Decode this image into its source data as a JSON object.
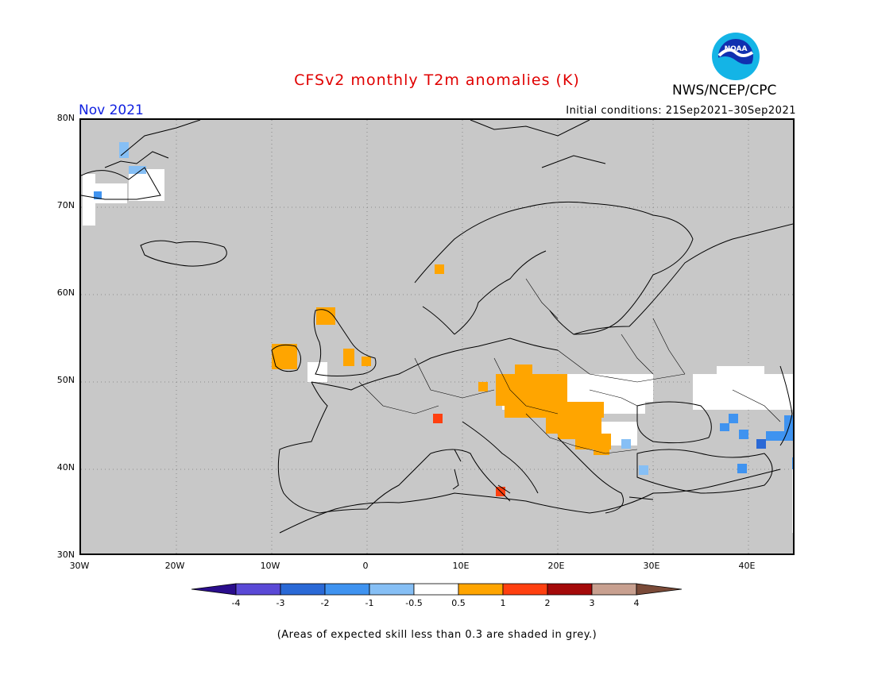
{
  "title": "CFSv2 monthly T2m anomalies (K)",
  "agency": "NWS/NCEP/CPC",
  "month": "Nov 2021",
  "initial_conditions": "Initial conditions: 21Sep2021–30Sep2021",
  "logo": {
    "icon": "noaa-logo",
    "text": "NOAA"
  },
  "map": {
    "lat_labels": [
      "80N",
      "70N",
      "60N",
      "50N",
      "40N",
      "30N"
    ],
    "lon_labels": [
      "30W",
      "20W",
      "10W",
      "0",
      "10E",
      "20E",
      "30E",
      "40E"
    ],
    "land_color": "#c8c8c8"
  },
  "colorbar": {
    "ticks": [
      "-4",
      "-3",
      "-2",
      "-1",
      "-0.5",
      "0.5",
      "1",
      "2",
      "3",
      "4"
    ],
    "colors": [
      "#2a0d8c",
      "#5a49d6",
      "#2a69d6",
      "#3f93f0",
      "#86bff5",
      "#ffffff",
      "#ffa500",
      "#ff4010",
      "#a40a0a",
      "#c8a090",
      "#7a4a38"
    ]
  },
  "note": "(Areas of expected skill less than 0.3 are shaded in grey.)"
}
